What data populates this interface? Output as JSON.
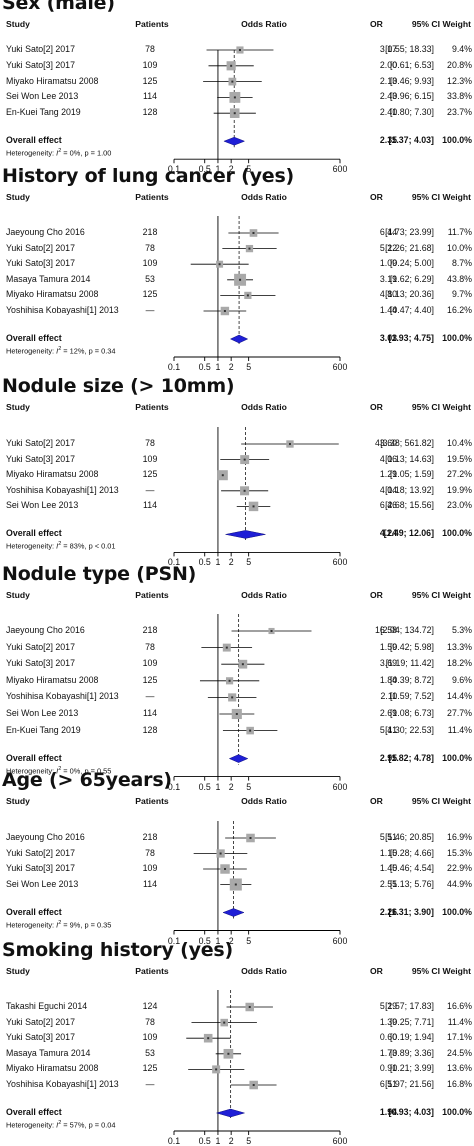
{
  "columns": {
    "study": "Study",
    "patients": "Patients",
    "or_plot": "Odds Ratio",
    "or": "OR",
    "ci": "95% CI",
    "weight": "Weight"
  },
  "chart_data": [
    {
      "type": "forest",
      "title": "Sex (male)",
      "x_scale": "log",
      "x_ticks": [
        "0.1",
        "0.5",
        "1",
        "2",
        "5",
        "600"
      ],
      "studies": [
        {
          "study": "Yuki Sato[2] 2017",
          "patients": "78",
          "or": 3.17,
          "lo": 0.55,
          "hi": 18.33,
          "or_text": "3.17",
          "ci_text": "[0.55; 18.33]",
          "weight": "9.4%"
        },
        {
          "study": "Yuki Sato[3] 2017",
          "patients": "109",
          "or": 2.0,
          "lo": 0.61,
          "hi": 6.53,
          "or_text": "2.00",
          "ci_text": "[0.61; 6.53]",
          "weight": "20.8%"
        },
        {
          "study": "Miyako Hiramatsu 2008",
          "patients": "125",
          "or": 2.13,
          "lo": 0.46,
          "hi": 9.93,
          "or_text": "2.13",
          "ci_text": "[0.46; 9.93]",
          "weight": "12.3%"
        },
        {
          "study": "Sei Won Lee 2013",
          "patients": "114",
          "or": 2.43,
          "lo": 0.96,
          "hi": 6.15,
          "or_text": "2.43",
          "ci_text": "[0.96; 6.15]",
          "weight": "33.8%"
        },
        {
          "study": "En-Kuei Tang 2019",
          "patients": "128",
          "or": 2.41,
          "lo": 0.8,
          "hi": 7.3,
          "or_text": "2.41",
          "ci_text": "[0.80; 7.30]",
          "weight": "23.7%"
        }
      ],
      "overall": {
        "label": "Overall effect",
        "or": 2.35,
        "lo": 1.37,
        "hi": 4.03,
        "or_text": "2.35",
        "ci_text": "[1.37; 4.03]",
        "weight": "100.0%"
      },
      "heterogeneity": {
        "prefix": "Heterogeneity: ",
        "i2_label": "I",
        "i2_sup": "2",
        "i2_value": " = 0%, p = 1.00"
      }
    },
    {
      "type": "forest",
      "title": "History of lung cancer (yes)",
      "x_scale": "log",
      "x_ticks": [
        "0.1",
        "0.5",
        "1",
        "2",
        "5",
        "600"
      ],
      "studies": [
        {
          "study": "Jaeyoung Cho 2016",
          "patients": "218",
          "or": 6.44,
          "lo": 1.73,
          "hi": 23.99,
          "or_text": "6.44",
          "ci_text": "[1.73; 23.99]",
          "weight": "11.7%"
        },
        {
          "study": "Yuki Sato[2] 2017",
          "patients": "78",
          "or": 5.22,
          "lo": 1.26,
          "hi": 21.68,
          "or_text": "5.22",
          "ci_text": "[1.26; 21.68]",
          "weight": "10.0%"
        },
        {
          "study": "Yuki Sato[3] 2017",
          "patients": "109",
          "or": 1.09,
          "lo": 0.24,
          "hi": 5.0,
          "or_text": "1.09",
          "ci_text": "[0.24; 5.00]",
          "weight": "8.7%"
        },
        {
          "study": "Masaya Tamura 2014",
          "patients": "53",
          "or": 3.19,
          "lo": 1.62,
          "hi": 6.29,
          "or_text": "3.19",
          "ci_text": "[1.62; 6.29]",
          "weight": "43.8%"
        },
        {
          "study": "Miyako Hiramatsu 2008",
          "patients": "125",
          "or": 4.8,
          "lo": 1.13,
          "hi": 20.36,
          "or_text": "4.80",
          "ci_text": "[1.13; 20.36]",
          "weight": "9.7%"
        },
        {
          "study": "Yoshihisa Kobayashi[1] 2013",
          "patients": "—",
          "or": 1.44,
          "lo": 0.47,
          "hi": 4.4,
          "or_text": "1.44",
          "ci_text": "[0.47; 4.40]",
          "weight": "16.2%"
        }
      ],
      "overall": {
        "label": "Overall effect",
        "or": 3.03,
        "lo": 1.93,
        "hi": 4.75,
        "or_text": "3.03",
        "ci_text": "[1.93; 4.75]",
        "weight": "100.0%"
      },
      "heterogeneity": {
        "prefix": "Heterogeneity: ",
        "i2_label": "I",
        "i2_sup": "2",
        "i2_value": " = 12%, p = 0.34"
      }
    },
    {
      "type": "forest",
      "title": "Nodule size (> 10mm)",
      "x_scale": "log",
      "x_ticks": [
        "0.1",
        "0.5",
        "1",
        "2",
        "5",
        "600"
      ],
      "studies": [
        {
          "study": "Yuki Sato[2] 2017",
          "patients": "78",
          "or": 43.6,
          "lo": 3.38,
          "hi": 561.82,
          "or_text": "43.60",
          "ci_text": "[3.38; 561.82]",
          "weight": "10.4%"
        },
        {
          "study": "Yuki Sato[3] 2017",
          "patients": "109",
          "or": 4.06,
          "lo": 1.13,
          "hi": 14.63,
          "or_text": "4.06",
          "ci_text": "[1.13; 14.63]",
          "weight": "19.5%"
        },
        {
          "study": "Miyako Hiramatsu 2008",
          "patients": "125",
          "or": 1.29,
          "lo": 1.05,
          "hi": 1.59,
          "or_text": "1.29",
          "ci_text": "[1.05; 1.59]",
          "weight": "27.2%"
        },
        {
          "study": "Yoshihisa Kobayashi[1] 2013",
          "patients": "—",
          "or": 4.04,
          "lo": 1.18,
          "hi": 13.92,
          "or_text": "4.04",
          "ci_text": "[1.18; 13.92]",
          "weight": "19.9%"
        },
        {
          "study": "Sei Won Lee 2013",
          "patients": "114",
          "or": 6.46,
          "lo": 2.68,
          "hi": 15.56,
          "or_text": "6.46",
          "ci_text": "[2.68; 15.56]",
          "weight": "23.0%"
        }
      ],
      "overall": {
        "label": "Overall effect",
        "or": 4.24,
        "lo": 1.49,
        "hi": 12.06,
        "or_text": "4.24",
        "ci_text": "[1.49; 12.06]",
        "weight": "100.0%"
      },
      "heterogeneity": {
        "prefix": "Heterogeneity: ",
        "i2_label": "I",
        "i2_sup": "2",
        "i2_value": " = 83%, p < 0.01"
      }
    },
    {
      "type": "forest",
      "title": "Nodule type (PSN)",
      "x_scale": "log",
      "x_ticks": [
        "0.1",
        "0.5",
        "1",
        "2",
        "5",
        "600"
      ],
      "studies": [
        {
          "study": "Jaeyoung Cho 2016",
          "patients": "218",
          "or": 16.58,
          "lo": 2.04,
          "hi": 134.72,
          "or_text": "16.58",
          "ci_text": "[2.04; 134.72]",
          "weight": "5.3%"
        },
        {
          "study": "Yuki Sato[2] 2017",
          "patients": "78",
          "or": 1.59,
          "lo": 0.42,
          "hi": 5.98,
          "or_text": "1.59",
          "ci_text": "[0.42; 5.98]",
          "weight": "13.3%"
        },
        {
          "study": "Yuki Sato[3] 2017",
          "patients": "109",
          "or": 3.69,
          "lo": 1.19,
          "hi": 11.42,
          "or_text": "3.69",
          "ci_text": "[1.19; 11.42]",
          "weight": "18.2%"
        },
        {
          "study": "Miyako Hiramatsu 2008",
          "patients": "125",
          "or": 1.84,
          "lo": 0.39,
          "hi": 8.72,
          "or_text": "1.84",
          "ci_text": "[0.39; 8.72]",
          "weight": "9.6%"
        },
        {
          "study": "Yoshihisa Kobayashi[1] 2013",
          "patients": "—",
          "or": 2.11,
          "lo": 0.59,
          "hi": 7.52,
          "or_text": "2.11",
          "ci_text": "[0.59; 7.52]",
          "weight": "14.4%"
        },
        {
          "study": "Sei Won Lee 2013",
          "patients": "114",
          "or": 2.69,
          "lo": 1.08,
          "hi": 6.73,
          "or_text": "2.69",
          "ci_text": "[1.08; 6.73]",
          "weight": "27.7%"
        },
        {
          "study": "En-Kuei Tang 2019",
          "patients": "128",
          "or": 5.41,
          "lo": 1.3,
          "hi": 22.53,
          "or_text": "5.41",
          "ci_text": "[1.30; 22.53]",
          "weight": "11.4%"
        }
      ],
      "overall": {
        "label": "Overall effect",
        "or": 2.95,
        "lo": 1.82,
        "hi": 4.78,
        "or_text": "2.95",
        "ci_text": "[1.82; 4.78]",
        "weight": "100.0%"
      },
      "heterogeneity": {
        "prefix": "Heterogeneity: ",
        "i2_label": "I",
        "i2_sup": "2",
        "i2_value": " = 0%, p = 0.55"
      }
    },
    {
      "type": "forest",
      "title": "Age (> 65years)",
      "x_scale": "log",
      "x_ticks": [
        "0.1",
        "0.5",
        "1",
        "2",
        "5",
        "600"
      ],
      "studies": [
        {
          "study": "Jaeyoung Cho 2016",
          "patients": "218",
          "or": 5.51,
          "lo": 1.46,
          "hi": 20.85,
          "or_text": "5.51",
          "ci_text": "[1.46; 20.85]",
          "weight": "16.9%"
        },
        {
          "study": "Yuki Sato[2] 2017",
          "patients": "78",
          "or": 1.15,
          "lo": 0.28,
          "hi": 4.66,
          "or_text": "1.15",
          "ci_text": "[0.28; 4.66]",
          "weight": "15.3%"
        },
        {
          "study": "Yuki Sato[3] 2017",
          "patients": "109",
          "or": 1.45,
          "lo": 0.46,
          "hi": 4.54,
          "or_text": "1.45",
          "ci_text": "[0.46; 4.54]",
          "weight": "22.9%"
        },
        {
          "study": "Sei Won Lee 2013",
          "patients": "114",
          "or": 2.55,
          "lo": 1.13,
          "hi": 5.76,
          "or_text": "2.55",
          "ci_text": "[1.13; 5.76]",
          "weight": "44.9%"
        }
      ],
      "overall": {
        "label": "Overall effect",
        "or": 2.26,
        "lo": 1.31,
        "hi": 3.9,
        "or_text": "2.26",
        "ci_text": "[1.31; 3.90]",
        "weight": "100.0%"
      },
      "heterogeneity": {
        "prefix": "Heterogeneity: ",
        "i2_label": "I",
        "i2_sup": "2",
        "i2_value": " = 9%, p = 0.35"
      }
    },
    {
      "type": "forest",
      "title": "Smoking history (yes)",
      "x_scale": "log",
      "x_ticks": [
        "0.1",
        "0.5",
        "1",
        "2",
        "5",
        "600"
      ],
      "studies": [
        {
          "study": "Takashi Eguchi 2014",
          "patients": "124",
          "or": 5.29,
          "lo": 1.57,
          "hi": 17.83,
          "or_text": "5.29",
          "ci_text": "[1.57; 17.83]",
          "weight": "16.6%"
        },
        {
          "study": "Yuki Sato[2] 2017",
          "patients": "78",
          "or": 1.39,
          "lo": 0.25,
          "hi": 7.71,
          "or_text": "1.39",
          "ci_text": "[0.25; 7.71]",
          "weight": "11.4%"
        },
        {
          "study": "Yuki Sato[3] 2017",
          "patients": "109",
          "or": 0.6,
          "lo": 0.19,
          "hi": 1.94,
          "or_text": "0.60",
          "ci_text": "[0.19; 1.94]",
          "weight": "17.1%"
        },
        {
          "study": "Masaya Tamura 2014",
          "patients": "53",
          "or": 1.73,
          "lo": 0.89,
          "hi": 3.36,
          "or_text": "1.73",
          "ci_text": "[0.89; 3.36]",
          "weight": "24.5%"
        },
        {
          "study": "Miyako Hiramatsu 2008",
          "patients": "125",
          "or": 0.91,
          "lo": 0.21,
          "hi": 3.99,
          "or_text": "0.91",
          "ci_text": "[0.21; 3.99]",
          "weight": "13.6%"
        },
        {
          "study": "Yoshihisa Kobayashi[1] 2013",
          "patients": "—",
          "or": 6.51,
          "lo": 1.97,
          "hi": 21.56,
          "or_text": "6.51",
          "ci_text": "[1.97; 21.56]",
          "weight": "16.8%"
        }
      ],
      "overall": {
        "label": "Overall effect",
        "or": 1.94,
        "lo": 0.93,
        "hi": 4.03,
        "or_text": "1.94",
        "ci_text": "[0.93; 4.03]",
        "weight": "100.0%"
      },
      "heterogeneity": {
        "prefix": "Heterogeneity: ",
        "i2_label": "I",
        "i2_sup": "2",
        "i2_value": " = 57%, p = 0.04"
      }
    }
  ]
}
